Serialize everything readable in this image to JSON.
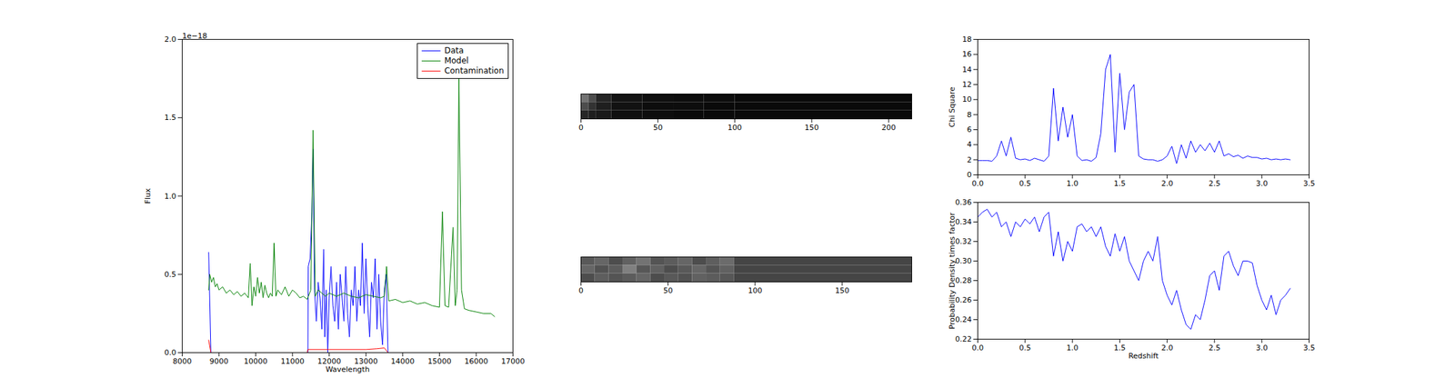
{
  "chart_data": [
    {
      "type": "line",
      "xlabel": "Wavelength",
      "ylabel": "Flux",
      "annotations": [
        "1e−18"
      ],
      "xlim": [
        8000,
        17000
      ],
      "xticks": [
        8000,
        9000,
        10000,
        11000,
        12000,
        13000,
        14000,
        15000,
        16000,
        17000
      ],
      "ylim": [
        0,
        2
      ],
      "yticks": [
        {
          "value": 0,
          "label": "0.0"
        },
        0.5,
        {
          "value": 1,
          "label": "1.0"
        },
        1.5,
        {
          "value": 2,
          "label": "2.0"
        }
      ],
      "legend": "upper right",
      "series": [
        {
          "name": "Data",
          "color": "#0000ff",
          "x": [
            8720,
            8780,
            11400,
            11420,
            11430,
            11480,
            11530,
            11560,
            11600,
            11650,
            11700,
            11750,
            11800,
            11850,
            11880,
            11920,
            11960,
            12000,
            12050,
            12100,
            12150,
            12200,
            12250,
            12300,
            12350,
            12400,
            12450,
            12500,
            12550,
            12600,
            12650,
            12700,
            12750,
            12800,
            12850,
            12900,
            12950,
            13000,
            13050,
            13100,
            13150,
            13200,
            13250,
            13300,
            13350,
            13400,
            13450,
            13500,
            13550,
            13600,
            13650
          ],
          "values": [
            0.64,
            0.0,
            0.0,
            0.0,
            0.55,
            0.6,
            0.9,
            1.3,
            0.4,
            0.2,
            0.45,
            0.35,
            0.15,
            0.66,
            0.1,
            0.4,
            0.0,
            0.35,
            0.55,
            0.3,
            0.2,
            0.45,
            0.15,
            0.5,
            0.35,
            0.2,
            0.55,
            0.25,
            0.1,
            0.4,
            0.3,
            0.55,
            0.2,
            0.4,
            0.3,
            0.7,
            0.25,
            0.6,
            0.3,
            0.1,
            0.45,
            0.35,
            0.6,
            0.15,
            0.5,
            0.2,
            0.05,
            0.4,
            0.5,
            0.0,
            0.0
          ]
        },
        {
          "name": "Model",
          "color": "#008000",
          "x": [
            8720,
            8750,
            8800,
            8850,
            8900,
            8950,
            9000,
            9100,
            9200,
            9300,
            9400,
            9500,
            9600,
            9700,
            9800,
            9850,
            9900,
            9950,
            10000,
            10050,
            10100,
            10150,
            10200,
            10250,
            10300,
            10350,
            10400,
            10450,
            10500,
            10550,
            10600,
            10700,
            10800,
            10900,
            11000,
            11100,
            11200,
            11300,
            11400,
            11500,
            11560,
            11620,
            11700,
            11800,
            11900,
            12000,
            12200,
            12400,
            12600,
            12800,
            13000,
            13200,
            13400,
            13500,
            13560,
            13620,
            13800,
            14000,
            14200,
            14400,
            14600,
            14800,
            15000,
            15080,
            15150,
            15250,
            15370,
            15430,
            15480,
            15530,
            15600,
            15680,
            15800,
            16000,
            16200,
            16400,
            16500
          ],
          "values": [
            0.4,
            0.5,
            0.45,
            0.48,
            0.42,
            0.44,
            0.4,
            0.42,
            0.38,
            0.4,
            0.37,
            0.39,
            0.36,
            0.38,
            0.35,
            0.57,
            0.3,
            0.42,
            0.36,
            0.48,
            0.38,
            0.45,
            0.35,
            0.43,
            0.38,
            0.35,
            0.38,
            0.36,
            0.7,
            0.36,
            0.4,
            0.37,
            0.42,
            0.36,
            0.4,
            0.38,
            0.35,
            0.36,
            0.34,
            0.4,
            1.42,
            0.36,
            0.4,
            0.38,
            0.36,
            0.38,
            0.36,
            0.38,
            0.36,
            0.35,
            0.37,
            0.36,
            0.35,
            0.36,
            0.55,
            0.33,
            0.34,
            0.32,
            0.33,
            0.31,
            0.32,
            0.3,
            0.29,
            0.9,
            0.3,
            0.29,
            0.8,
            0.3,
            0.4,
            1.75,
            0.4,
            0.28,
            0.27,
            0.26,
            0.25,
            0.25,
            0.23
          ]
        },
        {
          "name": "Contamination",
          "color": "#ff0000",
          "x": [
            8720,
            8780,
            11400,
            11420,
            12000,
            12500,
            13000,
            13300,
            13500,
            13600
          ],
          "values": [
            0.08,
            0.0,
            0.0,
            0.02,
            0.02,
            0.02,
            0.02,
            0.025,
            0.03,
            0.0
          ]
        }
      ]
    },
    {
      "type": "heatmap",
      "xlim": [
        0,
        215
      ],
      "xticks": [
        0,
        50,
        100,
        150,
        200
      ],
      "ylim": [
        0,
        15
      ],
      "tick_labels": "x",
      "x_edges": [
        0,
        5,
        10,
        20,
        40,
        60,
        80,
        100,
        215
      ],
      "y_edges": [
        0,
        5,
        10,
        15
      ],
      "zlim": [
        0,
        1
      ],
      "cells": [
        [
          0.45,
          0.3,
          0.15,
          0.08,
          0.06,
          0.05,
          0.05,
          0.04
        ],
        [
          0.3,
          0.2,
          0.12,
          0.07,
          0.05,
          0.05,
          0.04,
          0.04
        ],
        [
          0.15,
          0.12,
          0.1,
          0.06,
          0.05,
          0.04,
          0.04,
          0.04
        ]
      ]
    },
    {
      "type": "heatmap",
      "xlim": [
        0,
        190
      ],
      "xticks": [
        0,
        50,
        100,
        150
      ],
      "ylim": [
        0,
        15
      ],
      "tick_labels": "x",
      "x_edges": [
        0,
        8,
        16,
        24,
        32,
        40,
        48,
        56,
        64,
        72,
        80,
        88,
        190
      ],
      "y_edges": [
        0,
        5,
        10,
        15
      ],
      "zlim": [
        0,
        1
      ],
      "cells": [
        [
          0.35,
          0.4,
          0.3,
          0.38,
          0.45,
          0.33,
          0.36,
          0.4,
          0.3,
          0.37,
          0.42,
          0.27
        ],
        [
          0.4,
          0.32,
          0.36,
          0.5,
          0.34,
          0.38,
          0.3,
          0.35,
          0.4,
          0.33,
          0.38,
          0.27
        ],
        [
          0.3,
          0.37,
          0.33,
          0.36,
          0.4,
          0.3,
          0.35,
          0.32,
          0.38,
          0.36,
          0.34,
          0.27
        ]
      ]
    },
    {
      "type": "line",
      "ylabel": "Chi Square",
      "xlim": [
        0,
        3.5
      ],
      "xticks": [
        {
          "value": 0,
          "label": "0.0"
        },
        0.5,
        {
          "value": 1,
          "label": "1.0"
        },
        1.5,
        {
          "value": 2,
          "label": "2.0"
        },
        2.5,
        {
          "value": 3,
          "label": "3.0"
        },
        3.5
      ],
      "ylim": [
        0,
        18
      ],
      "yticks": [
        0,
        2,
        4,
        6,
        8,
        10,
        12,
        14,
        16,
        18
      ],
      "series": [
        {
          "color": "#0000ff",
          "x": [
            0.0,
            0.05,
            0.1,
            0.15,
            0.2,
            0.25,
            0.3,
            0.35,
            0.4,
            0.45,
            0.5,
            0.55,
            0.6,
            0.65,
            0.7,
            0.75,
            0.8,
            0.85,
            0.9,
            0.95,
            1.0,
            1.05,
            1.1,
            1.15,
            1.2,
            1.25,
            1.3,
            1.35,
            1.4,
            1.45,
            1.5,
            1.55,
            1.6,
            1.65,
            1.7,
            1.75,
            1.8,
            1.85,
            1.9,
            1.95,
            2.0,
            2.05,
            2.1,
            2.15,
            2.2,
            2.25,
            2.3,
            2.35,
            2.4,
            2.45,
            2.5,
            2.55,
            2.6,
            2.65,
            2.7,
            2.75,
            2.8,
            2.85,
            2.9,
            2.95,
            3.0,
            3.05,
            3.1,
            3.15,
            3.2,
            3.25,
            3.3
          ],
          "values": [
            1.9,
            1.9,
            1.9,
            1.8,
            2.5,
            4.5,
            2.5,
            5.0,
            2.2,
            2.0,
            2.1,
            1.9,
            2.2,
            2.0,
            1.8,
            2.5,
            11.5,
            4.5,
            9.0,
            5.0,
            8.0,
            2.5,
            1.9,
            2.0,
            1.8,
            2.3,
            5.5,
            14.0,
            16.0,
            3.0,
            13.5,
            6.0,
            11.0,
            12.0,
            2.5,
            2.1,
            2.0,
            2.0,
            1.8,
            2.0,
            2.5,
            3.8,
            1.5,
            4.0,
            2.2,
            4.5,
            3.0,
            4.0,
            3.2,
            4.2,
            3.0,
            4.5,
            2.5,
            2.8,
            2.4,
            2.6,
            2.2,
            2.5,
            2.3,
            2.3,
            2.1,
            2.2,
            2.0,
            2.1,
            2.0,
            2.1,
            2.0
          ]
        }
      ]
    },
    {
      "type": "line",
      "xlabel": "Redshift",
      "ylabel": "Probability Density times factor",
      "xlim": [
        0,
        3.5
      ],
      "xticks": [
        {
          "value": 0,
          "label": "0.0"
        },
        0.5,
        {
          "value": 1,
          "label": "1.0"
        },
        1.5,
        {
          "value": 2,
          "label": "2.0"
        },
        2.5,
        {
          "value": 3,
          "label": "3.0"
        },
        3.5
      ],
      "ylim": [
        0.22,
        0.36
      ],
      "yticks": [
        0.22,
        0.24,
        0.26,
        0.28,
        {
          "value": 0.3,
          "label": "0.30"
        },
        0.32,
        0.34,
        0.36
      ],
      "series": [
        {
          "color": "#0000ff",
          "x": [
            0.0,
            0.05,
            0.1,
            0.15,
            0.2,
            0.25,
            0.3,
            0.35,
            0.4,
            0.45,
            0.5,
            0.55,
            0.6,
            0.65,
            0.7,
            0.75,
            0.8,
            0.85,
            0.9,
            0.95,
            1.0,
            1.05,
            1.1,
            1.15,
            1.2,
            1.25,
            1.3,
            1.35,
            1.4,
            1.45,
            1.5,
            1.55,
            1.6,
            1.65,
            1.7,
            1.75,
            1.8,
            1.85,
            1.9,
            1.95,
            2.0,
            2.05,
            2.1,
            2.15,
            2.2,
            2.25,
            2.3,
            2.35,
            2.4,
            2.45,
            2.5,
            2.55,
            2.6,
            2.65,
            2.7,
            2.75,
            2.8,
            2.85,
            2.9,
            2.95,
            3.0,
            3.05,
            3.1,
            3.15,
            3.2,
            3.25,
            3.3
          ],
          "values": [
            0.345,
            0.35,
            0.353,
            0.345,
            0.35,
            0.335,
            0.34,
            0.325,
            0.34,
            0.335,
            0.343,
            0.338,
            0.345,
            0.33,
            0.345,
            0.35,
            0.305,
            0.33,
            0.3,
            0.32,
            0.31,
            0.335,
            0.338,
            0.33,
            0.335,
            0.325,
            0.335,
            0.315,
            0.305,
            0.328,
            0.31,
            0.325,
            0.3,
            0.29,
            0.28,
            0.3,
            0.31,
            0.3,
            0.325,
            0.28,
            0.265,
            0.255,
            0.27,
            0.25,
            0.235,
            0.23,
            0.245,
            0.24,
            0.26,
            0.285,
            0.29,
            0.27,
            0.305,
            0.31,
            0.295,
            0.285,
            0.3,
            0.3,
            0.298,
            0.275,
            0.26,
            0.25,
            0.265,
            0.245,
            0.26,
            0.265,
            0.272
          ]
        }
      ]
    }
  ]
}
